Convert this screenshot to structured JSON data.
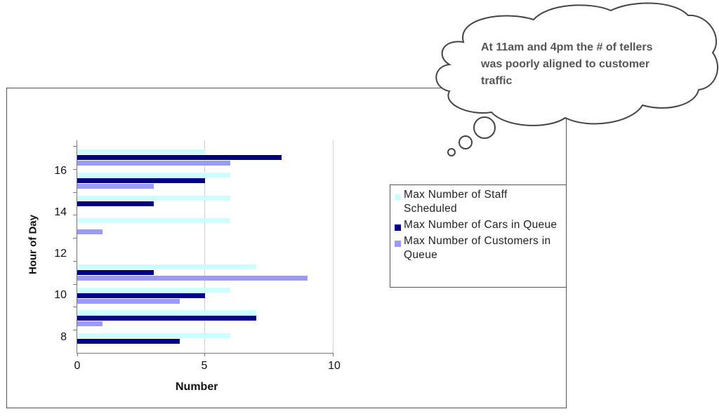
{
  "chart_data": {
    "type": "bar",
    "orientation": "horizontal",
    "title": "",
    "xlabel": "Number",
    "ylabel": "Hour of Day",
    "xlim": [
      0,
      10
    ],
    "x_ticks": [
      "0",
      "5",
      "10"
    ],
    "y_tick_labels": [
      "16",
      "14",
      "12",
      "10",
      "8"
    ],
    "categories": [
      "8",
      "9",
      "10",
      "11",
      "12",
      "13",
      "14",
      "15",
      "16"
    ],
    "series": [
      {
        "name": "Max Number of Staff Scheduled",
        "color": "#ccffff",
        "values": [
          6,
          7,
          6,
          7,
          0,
          6,
          6,
          6,
          5
        ]
      },
      {
        "name": "Max Number of Cars in Queue",
        "color": "#000080",
        "values": [
          4,
          7,
          5,
          3,
          0,
          0,
          3,
          5,
          8
        ]
      },
      {
        "name": "Max Number of Customers in Queue",
        "color": "#9999ff",
        "values": [
          0,
          1,
          4,
          9,
          0,
          1,
          0,
          3,
          6
        ]
      }
    ],
    "grid": {
      "vertical": true,
      "at": [
        5
      ]
    },
    "legend_position": "right",
    "annotation": "At 11am and 4pm the # of tellers was poorly aligned to customer traffic"
  },
  "axis": {
    "xtitle": "Number",
    "ytitle": "Hour of Day",
    "xticks": [
      "0",
      "5",
      "10"
    ],
    "yticks": [
      "16",
      "14",
      "12",
      "10",
      "8"
    ]
  },
  "legend": {
    "items": [
      {
        "label": "Max Number of Staff Scheduled",
        "color": "#ccffff"
      },
      {
        "label": "Max Number of Cars in Queue",
        "color": "#000080"
      },
      {
        "label": "Max Number of Customers in Queue",
        "color": "#9999ff"
      }
    ]
  },
  "callout": {
    "text": "At 11am and 4pm the # of tellers was poorly aligned to customer traffic"
  }
}
